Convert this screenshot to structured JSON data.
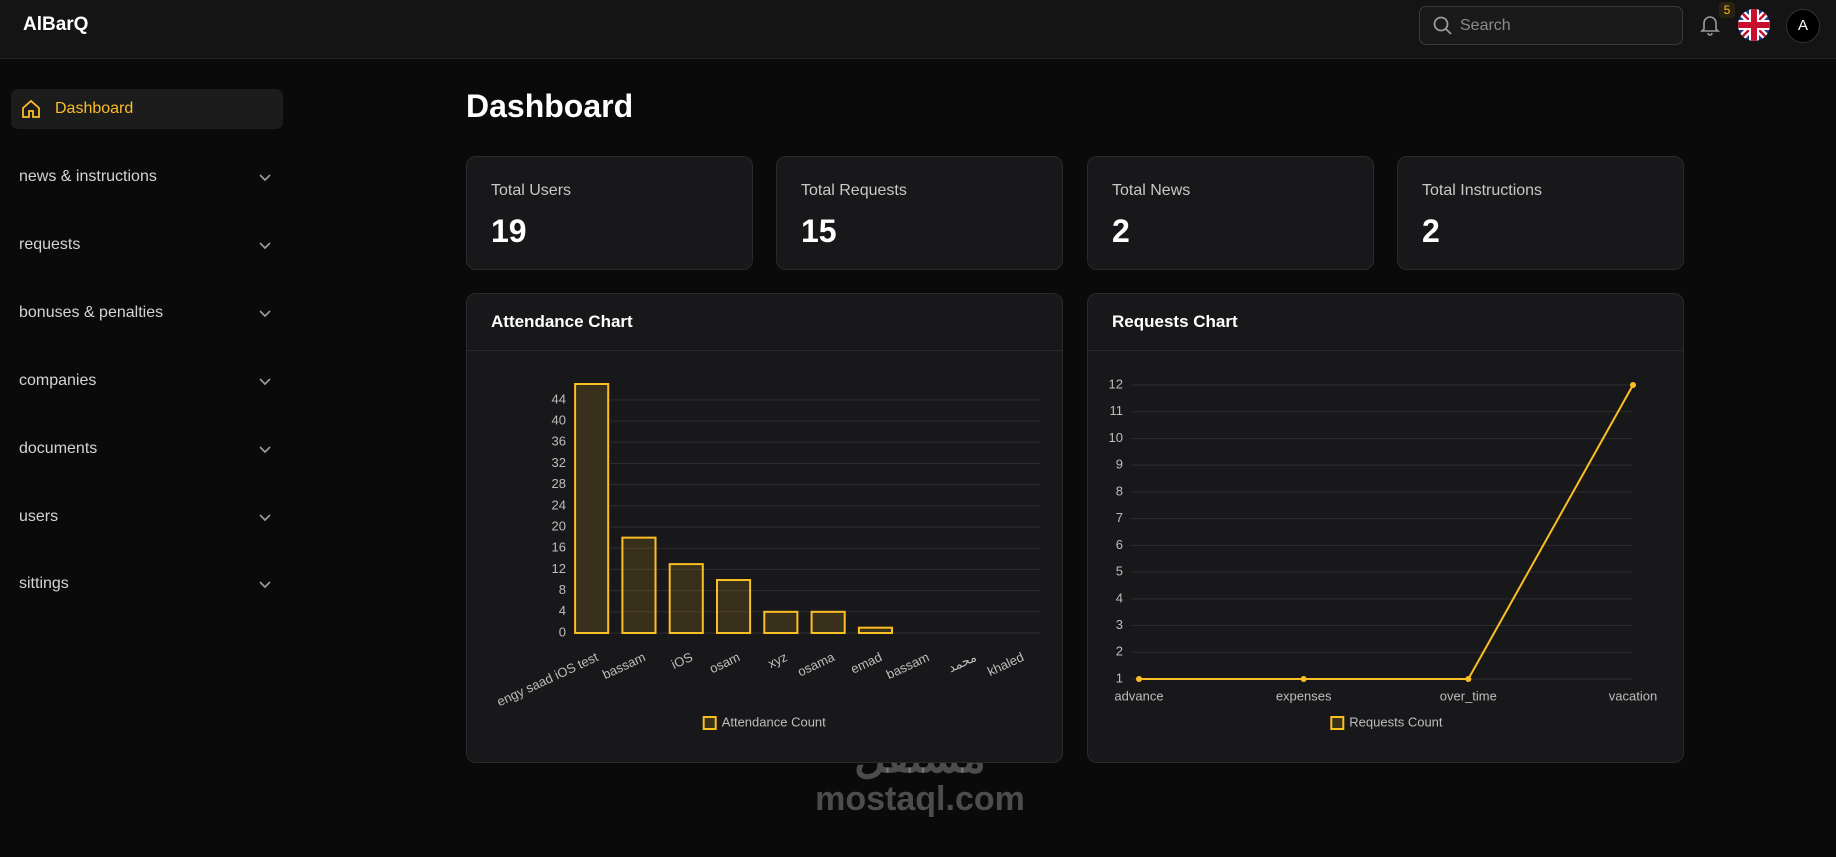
{
  "header": {
    "logo": "AlBarQ",
    "search_placeholder": "Search",
    "notification_count": "5",
    "avatar": "A"
  },
  "sidebar": {
    "items": [
      "Dashboard",
      "news & instructions",
      "requests",
      "bonuses & penalties",
      "companies",
      "documents",
      "users",
      "sittings"
    ]
  },
  "page": {
    "title": "Dashboard"
  },
  "stats": [
    {
      "label": "Total Users",
      "value": 19
    },
    {
      "label": "Total Requests",
      "value": 15
    },
    {
      "label": "Total News",
      "value": 2
    },
    {
      "label": "Total Instructions",
      "value": 2
    }
  ],
  "watermark": {
    "arabic": "مستقل",
    "latin": "mostaql.com"
  },
  "chart_data": [
    {
      "type": "bar",
      "title": "Attendance Chart",
      "categories": [
        "engy saad iOS test",
        "bassam",
        "iOS",
        "osam",
        "xyz",
        "osama",
        "emad",
        "bassam",
        "محمد",
        "khaled"
      ],
      "series": [
        {
          "name": "Attendance Count",
          "color": "#fbbf24",
          "values": [
            47,
            18,
            13,
            10,
            4,
            4,
            1,
            0,
            0,
            0
          ]
        }
      ],
      "ylim": [
        0,
        47
      ],
      "yticks": [
        0,
        4,
        8,
        12,
        16,
        20,
        24,
        28,
        32,
        36,
        40,
        44
      ],
      "grid": true,
      "legend": "bottom"
    },
    {
      "type": "line",
      "title": "Requests Chart",
      "categories": [
        "advance",
        "expenses",
        "over_time",
        "vacation"
      ],
      "series": [
        {
          "name": "Requests Count",
          "color": "#fbbf24",
          "values": [
            1,
            1,
            1,
            12
          ]
        }
      ],
      "ylim": [
        1,
        12
      ],
      "yticks": [
        1,
        2,
        3,
        4,
        5,
        6,
        7,
        8,
        9,
        10,
        11,
        12
      ],
      "grid": true,
      "legend": "bottom"
    }
  ]
}
